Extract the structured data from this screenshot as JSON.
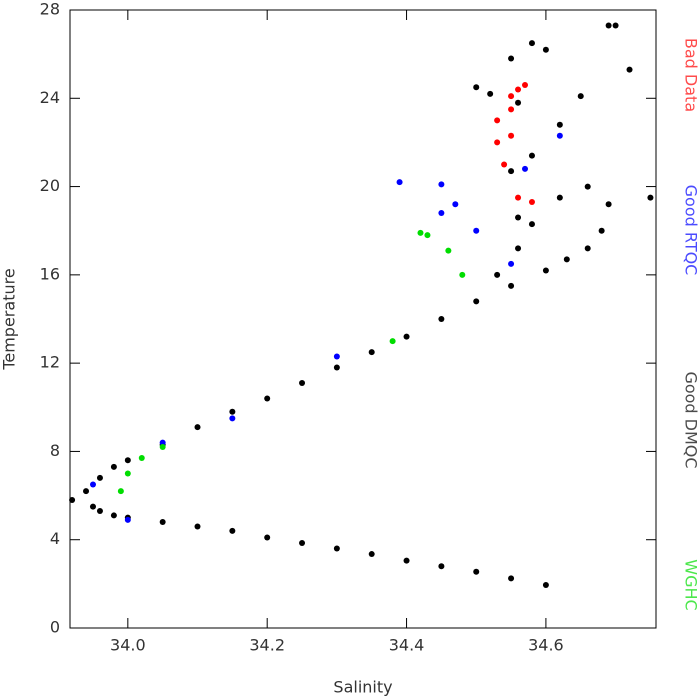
{
  "chart_data": {
    "type": "scatter",
    "x_label": "Salinity",
    "y_label": "Temperature",
    "xlim": [
      33.917,
      34.758
    ],
    "ylim": [
      0,
      28
    ],
    "xticks": [
      {
        "value": 34.0,
        "label": "34.0"
      },
      {
        "value": 34.2,
        "label": "34.2"
      },
      {
        "value": 34.4,
        "label": "34.4"
      },
      {
        "value": 34.6,
        "label": "34.6"
      }
    ],
    "yticks": [
      0,
      4,
      8,
      12,
      16,
      20,
      24,
      28
    ],
    "series": [
      {
        "name": "Good DMQC",
        "color": "#000000",
        "x": [
          33.96,
          33.98,
          34.0,
          34.05,
          34.1,
          34.15,
          34.2,
          34.25,
          34.3,
          34.35,
          34.4,
          34.45,
          34.5,
          34.55,
          34.6,
          33.92,
          33.94,
          33.95,
          33.96,
          33.98,
          34.0,
          34.05,
          34.1,
          34.15,
          34.2,
          34.25,
          34.3,
          34.35,
          34.4,
          34.45,
          34.5,
          34.55,
          34.6,
          34.63,
          34.66,
          34.68,
          34.69,
          34.66,
          34.62,
          34.58,
          34.56,
          34.53,
          34.75,
          34.5,
          34.52,
          34.55,
          34.58,
          34.6,
          34.69,
          34.7,
          34.72,
          34.65,
          34.62,
          34.56,
          34.58,
          34.55,
          34.56
        ],
        "values": [
          5.3,
          5.1,
          5.0,
          4.8,
          4.6,
          4.4,
          4.1,
          3.85,
          3.6,
          3.35,
          3.05,
          2.8,
          2.55,
          2.25,
          1.95,
          5.8,
          6.2,
          5.5,
          6.8,
          7.3,
          7.6,
          8.3,
          9.1,
          9.8,
          10.4,
          11.1,
          11.8,
          12.5,
          13.2,
          14.0,
          14.8,
          15.5,
          16.2,
          16.7,
          17.2,
          18.0,
          19.2,
          20.0,
          19.5,
          18.3,
          17.2,
          16.0,
          19.5,
          24.5,
          24.2,
          25.8,
          26.5,
          26.2,
          27.3,
          27.3,
          25.3,
          24.1,
          22.8,
          23.8,
          21.4,
          20.7,
          18.6
        ]
      },
      {
        "name": "Good RTQC",
        "color": "#0000ff",
        "x": [
          34.39,
          34.45,
          34.47,
          34.45,
          34.5,
          34.0,
          33.95,
          34.05,
          34.15,
          34.3,
          34.55,
          34.62,
          34.57
        ],
        "values": [
          20.2,
          20.1,
          19.2,
          18.8,
          18.0,
          4.9,
          6.5,
          8.4,
          9.5,
          12.3,
          16.5,
          22.3,
          20.8
        ]
      },
      {
        "name": "WGHC",
        "color": "#00dd00",
        "x": [
          34.42,
          34.43,
          34.46,
          34.48,
          33.99,
          34.0,
          34.02,
          34.05,
          34.38
        ],
        "values": [
          17.9,
          17.8,
          17.1,
          16.0,
          6.2,
          7.0,
          7.7,
          8.2,
          13.0
        ]
      },
      {
        "name": "Bad Data",
        "color": "#ff0000",
        "x": [
          34.53,
          34.55,
          34.56,
          34.55,
          34.53,
          34.54,
          34.55,
          34.56,
          34.58,
          34.57
        ],
        "values": [
          23.0,
          23.5,
          24.4,
          24.1,
          22.0,
          21.0,
          22.3,
          19.5,
          19.3,
          24.6
        ]
      }
    ]
  }
}
